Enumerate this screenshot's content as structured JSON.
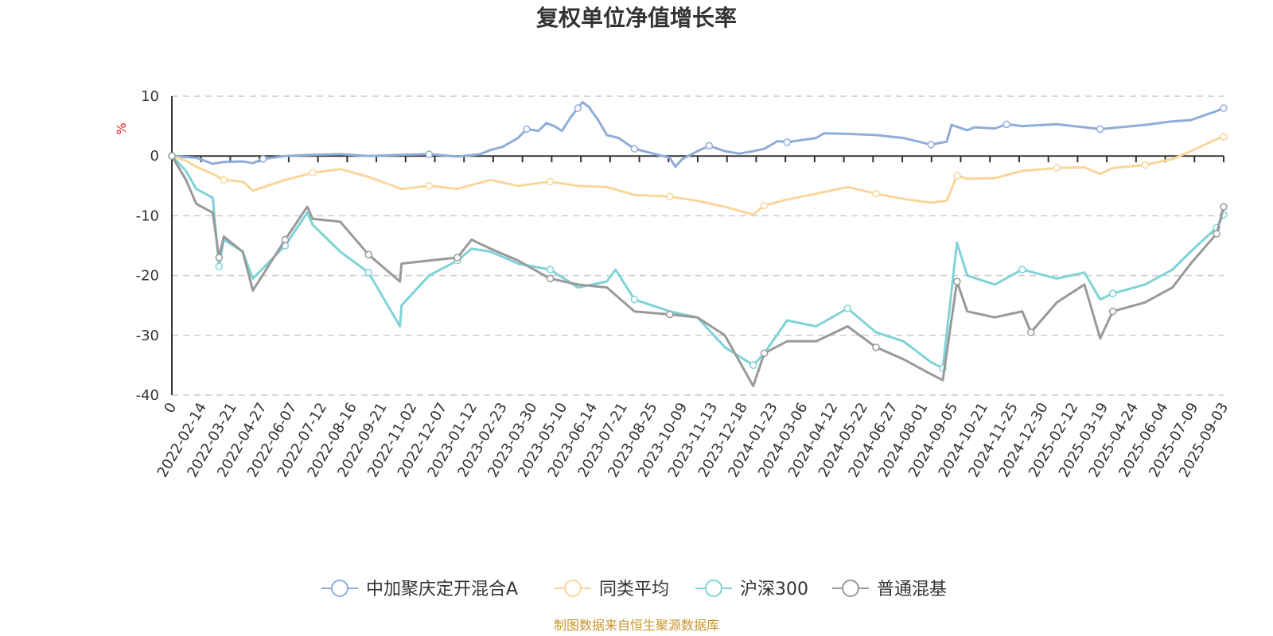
{
  "chart_data": {
    "type": "line",
    "title": "复权单位净值增长率",
    "ylabel": "%",
    "ylim": [
      -40,
      10
    ],
    "yticks": [
      10,
      0,
      -10,
      -20,
      -30,
      -40
    ],
    "xlim": [
      "2022-01-14",
      "2025-09-12"
    ],
    "x_tick_labels": [
      "0",
      "2022-02-14",
      "2022-03-21",
      "2022-04-27",
      "2022-06-07",
      "2022-07-12",
      "2022-08-16",
      "2022-09-21",
      "2022-11-02",
      "2022-12-07",
      "2023-01-12",
      "2023-02-23",
      "2023-03-30",
      "2023-05-10",
      "2023-06-14",
      "2023-07-21",
      "2023-08-25",
      "2023-10-09",
      "2023-11-13",
      "2023-12-18",
      "2024-01-23",
      "2024-03-06",
      "2024-04-12",
      "2024-05-22",
      "2024-06-27",
      "2024-08-01",
      "2024-09-05",
      "2024-10-21",
      "2024-11-25",
      "2024-12-30",
      "2025-02-12",
      "2025-03-19",
      "2025-04-24",
      "2025-06-04",
      "2025-07-09",
      "2025-09-03"
    ],
    "grid": true,
    "legend_position": "bottom",
    "series": [
      {
        "name": "中加聚庆定开混合A",
        "color": "#8fadd9",
        "points": [
          [
            "2022-01-14",
            0
          ],
          [
            "2022-02-14",
            -0.3
          ],
          [
            "2022-03-07",
            -1.3
          ],
          [
            "2022-03-21",
            -1.0
          ],
          [
            "2022-04-14",
            -0.9
          ],
          [
            "2022-04-27",
            -1.2
          ],
          [
            "2022-05-10",
            -0.5
          ],
          [
            "2022-06-07",
            0.0
          ],
          [
            "2022-07-12",
            0.2
          ],
          [
            "2022-08-16",
            0.3
          ],
          [
            "2022-09-21",
            0.0
          ],
          [
            "2022-11-02",
            0.2
          ],
          [
            "2022-12-07",
            0.3
          ],
          [
            "2023-01-12",
            -0.1
          ],
          [
            "2023-02-10",
            0.3
          ],
          [
            "2023-02-23",
            1.0
          ],
          [
            "2023-03-10",
            1.5
          ],
          [
            "2023-03-30",
            3.0
          ],
          [
            "2023-04-10",
            4.5
          ],
          [
            "2023-04-25",
            4.2
          ],
          [
            "2023-05-05",
            5.5
          ],
          [
            "2023-05-15",
            5.0
          ],
          [
            "2023-05-25",
            4.2
          ],
          [
            "2023-06-05",
            6.5
          ],
          [
            "2023-06-14",
            8.0
          ],
          [
            "2023-06-20",
            9.0
          ],
          [
            "2023-06-28",
            8.2
          ],
          [
            "2023-07-10",
            6.0
          ],
          [
            "2023-07-21",
            3.5
          ],
          [
            "2023-08-05",
            3.0
          ],
          [
            "2023-08-25",
            1.2
          ],
          [
            "2023-09-15",
            0.5
          ],
          [
            "2023-10-09",
            -0.3
          ],
          [
            "2023-10-16",
            -1.8
          ],
          [
            "2023-10-25",
            -0.5
          ],
          [
            "2023-11-13",
            0.8
          ],
          [
            "2023-11-28",
            1.7
          ],
          [
            "2023-12-18",
            0.8
          ],
          [
            "2024-01-05",
            0.4
          ],
          [
            "2024-01-23",
            0.8
          ],
          [
            "2024-02-06",
            1.2
          ],
          [
            "2024-02-23",
            2.5
          ],
          [
            "2024-03-06",
            2.3
          ],
          [
            "2024-04-12",
            3.0
          ],
          [
            "2024-04-22",
            3.8
          ],
          [
            "2024-05-22",
            3.7
          ],
          [
            "2024-06-27",
            3.5
          ],
          [
            "2024-08-01",
            3.0
          ],
          [
            "2024-09-05",
            1.9
          ],
          [
            "2024-09-25",
            2.4
          ],
          [
            "2024-10-01",
            5.2
          ],
          [
            "2024-10-21",
            4.3
          ],
          [
            "2024-10-30",
            4.8
          ],
          [
            "2024-11-25",
            4.6
          ],
          [
            "2024-12-10",
            5.3
          ],
          [
            "2024-12-30",
            5.0
          ],
          [
            "2025-01-15",
            5.1
          ],
          [
            "2025-02-12",
            5.3
          ],
          [
            "2025-03-05",
            5.0
          ],
          [
            "2025-03-19",
            4.8
          ],
          [
            "2025-04-08",
            4.5
          ],
          [
            "2025-04-24",
            4.7
          ],
          [
            "2025-06-04",
            5.2
          ],
          [
            "2025-07-09",
            5.8
          ],
          [
            "2025-08-01",
            6.0
          ],
          [
            "2025-09-03",
            7.5
          ],
          [
            "2025-09-12",
            8.0
          ]
        ]
      },
      {
        "name": "同类平均",
        "color": "#f9d69a",
        "points": [
          [
            "2022-01-14",
            0
          ],
          [
            "2022-02-01",
            -0.8
          ],
          [
            "2022-02-14",
            -1.8
          ],
          [
            "2022-03-07",
            -3.0
          ],
          [
            "2022-03-21",
            -4.0
          ],
          [
            "2022-04-14",
            -4.3
          ],
          [
            "2022-04-27",
            -5.8
          ],
          [
            "2022-06-07",
            -4.0
          ],
          [
            "2022-07-12",
            -2.8
          ],
          [
            "2022-08-16",
            -2.2
          ],
          [
            "2022-09-21",
            -3.5
          ],
          [
            "2022-11-02",
            -5.5
          ],
          [
            "2022-12-07",
            -5.0
          ],
          [
            "2023-01-12",
            -5.5
          ],
          [
            "2023-02-23",
            -4.0
          ],
          [
            "2023-03-30",
            -5.0
          ],
          [
            "2023-05-10",
            -4.3
          ],
          [
            "2023-06-14",
            -5.0
          ],
          [
            "2023-07-21",
            -5.2
          ],
          [
            "2023-08-25",
            -6.5
          ],
          [
            "2023-10-09",
            -6.8
          ],
          [
            "2023-11-13",
            -7.5
          ],
          [
            "2023-12-18",
            -8.5
          ],
          [
            "2024-01-23",
            -9.8
          ],
          [
            "2024-02-06",
            -8.3
          ],
          [
            "2024-03-06",
            -7.3
          ],
          [
            "2024-04-12",
            -6.3
          ],
          [
            "2024-05-22",
            -5.2
          ],
          [
            "2024-06-27",
            -6.3
          ],
          [
            "2024-08-01",
            -7.2
          ],
          [
            "2024-09-05",
            -7.8
          ],
          [
            "2024-09-25",
            -7.5
          ],
          [
            "2024-10-08",
            -3.3
          ],
          [
            "2024-10-21",
            -3.8
          ],
          [
            "2024-11-25",
            -3.7
          ],
          [
            "2024-12-30",
            -2.5
          ],
          [
            "2025-02-12",
            -2.0
          ],
          [
            "2025-03-19",
            -1.9
          ],
          [
            "2025-04-08",
            -3.0
          ],
          [
            "2025-04-24",
            -2.0
          ],
          [
            "2025-06-04",
            -1.5
          ],
          [
            "2025-07-09",
            -0.5
          ],
          [
            "2025-08-01",
            0.8
          ],
          [
            "2025-09-03",
            2.8
          ],
          [
            "2025-09-12",
            3.2
          ]
        ]
      },
      {
        "name": "沪深300",
        "color": "#7fd3d6",
        "points": [
          [
            "2022-01-14",
            0
          ],
          [
            "2022-02-01",
            -2.5
          ],
          [
            "2022-02-14",
            -5.5
          ],
          [
            "2022-03-07",
            -7.0
          ],
          [
            "2022-03-15",
            -18.5
          ],
          [
            "2022-03-21",
            -14.0
          ],
          [
            "2022-04-14",
            -16.0
          ],
          [
            "2022-04-27",
            -20.5
          ],
          [
            "2022-06-07",
            -15.0
          ],
          [
            "2022-07-05",
            -9.5
          ],
          [
            "2022-07-12",
            -11.5
          ],
          [
            "2022-08-16",
            -16.0
          ],
          [
            "2022-09-21",
            -19.5
          ],
          [
            "2022-10-31",
            -28.5
          ],
          [
            "2022-11-02",
            -25.0
          ],
          [
            "2022-12-07",
            -20.0
          ],
          [
            "2023-01-12",
            -17.5
          ],
          [
            "2023-01-30",
            -15.5
          ],
          [
            "2023-02-23",
            -16.0
          ],
          [
            "2023-03-30",
            -18.0
          ],
          [
            "2023-05-10",
            -19.0
          ],
          [
            "2023-06-14",
            -22.0
          ],
          [
            "2023-07-21",
            -21.0
          ],
          [
            "2023-08-01",
            -19.0
          ],
          [
            "2023-08-25",
            -24.0
          ],
          [
            "2023-10-09",
            -26.0
          ],
          [
            "2023-11-13",
            -27.0
          ],
          [
            "2023-12-18",
            -32.0
          ],
          [
            "2024-01-23",
            -35.0
          ],
          [
            "2024-02-06",
            -33.0
          ],
          [
            "2024-03-06",
            -27.5
          ],
          [
            "2024-04-12",
            -28.5
          ],
          [
            "2024-05-22",
            -25.5
          ],
          [
            "2024-06-27",
            -29.5
          ],
          [
            "2024-08-01",
            -31.0
          ],
          [
            "2024-09-05",
            -34.5
          ],
          [
            "2024-09-20",
            -35.5
          ],
          [
            "2024-10-08",
            -14.5
          ],
          [
            "2024-10-21",
            -20.0
          ],
          [
            "2024-11-25",
            -21.5
          ],
          [
            "2024-12-30",
            -19.0
          ],
          [
            "2025-02-12",
            -20.5
          ],
          [
            "2025-03-19",
            -19.5
          ],
          [
            "2025-04-08",
            -24.0
          ],
          [
            "2025-04-24",
            -23.0
          ],
          [
            "2025-06-04",
            -21.5
          ],
          [
            "2025-07-09",
            -19.0
          ],
          [
            "2025-08-01",
            -16.0
          ],
          [
            "2025-09-03",
            -12.0
          ],
          [
            "2025-09-12",
            -9.8
          ]
        ]
      },
      {
        "name": "普通混基",
        "color": "#999999",
        "points": [
          [
            "2022-01-14",
            0
          ],
          [
            "2022-02-01",
            -4.0
          ],
          [
            "2022-02-14",
            -8.0
          ],
          [
            "2022-03-07",
            -9.5
          ],
          [
            "2022-03-15",
            -17.0
          ],
          [
            "2022-03-21",
            -13.5
          ],
          [
            "2022-04-14",
            -16.0
          ],
          [
            "2022-04-27",
            -22.5
          ],
          [
            "2022-06-07",
            -14.0
          ],
          [
            "2022-07-05",
            -8.5
          ],
          [
            "2022-07-12",
            -10.5
          ],
          [
            "2022-08-16",
            -11.0
          ],
          [
            "2022-09-21",
            -16.5
          ],
          [
            "2022-10-31",
            -21.0
          ],
          [
            "2022-11-02",
            -18.0
          ],
          [
            "2022-12-07",
            -17.5
          ],
          [
            "2023-01-12",
            -17.0
          ],
          [
            "2023-01-30",
            -14.0
          ],
          [
            "2023-02-23",
            -15.5
          ],
          [
            "2023-03-30",
            -17.5
          ],
          [
            "2023-05-10",
            -20.5
          ],
          [
            "2023-06-14",
            -21.5
          ],
          [
            "2023-07-21",
            -22.0
          ],
          [
            "2023-08-25",
            -26.0
          ],
          [
            "2023-10-09",
            -26.5
          ],
          [
            "2023-11-13",
            -27.0
          ],
          [
            "2023-12-18",
            -30.0
          ],
          [
            "2024-01-23",
            -38.5
          ],
          [
            "2024-02-06",
            -33.0
          ],
          [
            "2024-03-06",
            -31.0
          ],
          [
            "2024-04-12",
            -31.0
          ],
          [
            "2024-05-22",
            -28.5
          ],
          [
            "2024-06-27",
            -32.0
          ],
          [
            "2024-08-01",
            -34.0
          ],
          [
            "2024-09-05",
            -36.5
          ],
          [
            "2024-09-20",
            -37.5
          ],
          [
            "2024-10-08",
            -21.0
          ],
          [
            "2024-10-21",
            -26.0
          ],
          [
            "2024-11-25",
            -27.0
          ],
          [
            "2024-12-30",
            -26.0
          ],
          [
            "2025-01-10",
            -29.5
          ],
          [
            "2025-02-12",
            -24.5
          ],
          [
            "2025-03-19",
            -21.5
          ],
          [
            "2025-04-08",
            -30.5
          ],
          [
            "2025-04-24",
            -26.0
          ],
          [
            "2025-06-04",
            -24.5
          ],
          [
            "2025-07-09",
            -22.0
          ],
          [
            "2025-08-01",
            -18.0
          ],
          [
            "2025-09-03",
            -13.0
          ],
          [
            "2025-09-12",
            -8.5
          ]
        ]
      }
    ]
  },
  "source_note": "制图数据来自恒生聚源数据库"
}
